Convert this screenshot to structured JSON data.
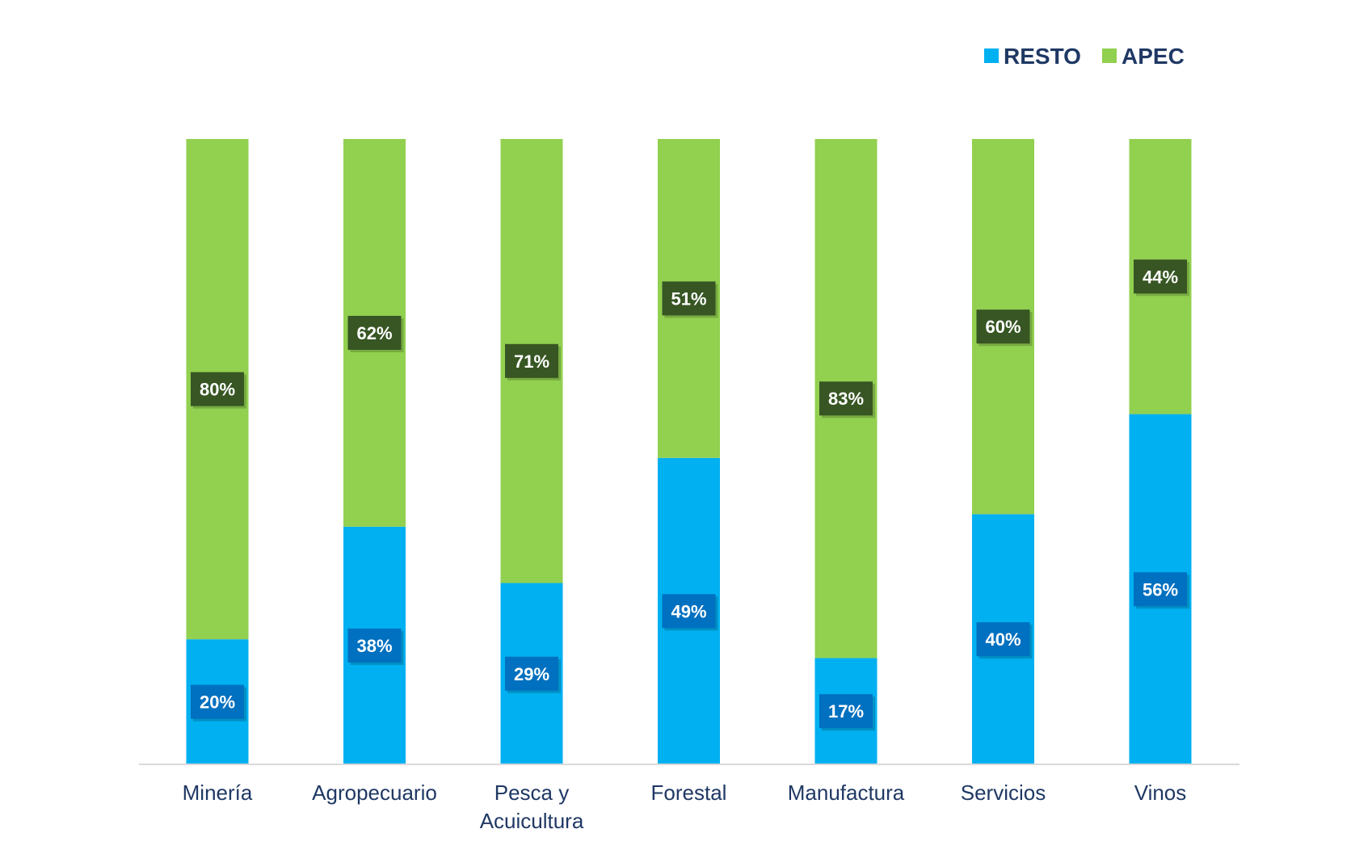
{
  "chart_data": {
    "type": "bar",
    "stacked": true,
    "categories": [
      [
        "Minería"
      ],
      [
        "Agropecuario"
      ],
      [
        "Pesca y",
        "Acuicultura"
      ],
      [
        "Forestal"
      ],
      [
        "Manufactura"
      ],
      [
        "Servicios"
      ],
      [
        "Vinos"
      ]
    ],
    "series": [
      {
        "name": "RESTO",
        "color": "#00b0f0",
        "label_color": "#0070c0",
        "values": [
          20,
          38,
          29,
          49,
          17,
          40,
          56
        ],
        "labels": [
          "20%",
          "38%",
          "29%",
          "49%",
          "17%",
          "40%",
          "56%"
        ]
      },
      {
        "name": "APEC",
        "color": "#92d050",
        "label_color": "#375623",
        "values": [
          80,
          62,
          71,
          51,
          83,
          60,
          44
        ],
        "labels": [
          "80%",
          "62%",
          "71%",
          "51%",
          "83%",
          "60%",
          "44%"
        ]
      }
    ],
    "ylim": [
      0,
      100
    ],
    "grid": false,
    "legend_position": "top-right",
    "axis_color": "#d9d9d9",
    "text_color": "#1f3864"
  }
}
